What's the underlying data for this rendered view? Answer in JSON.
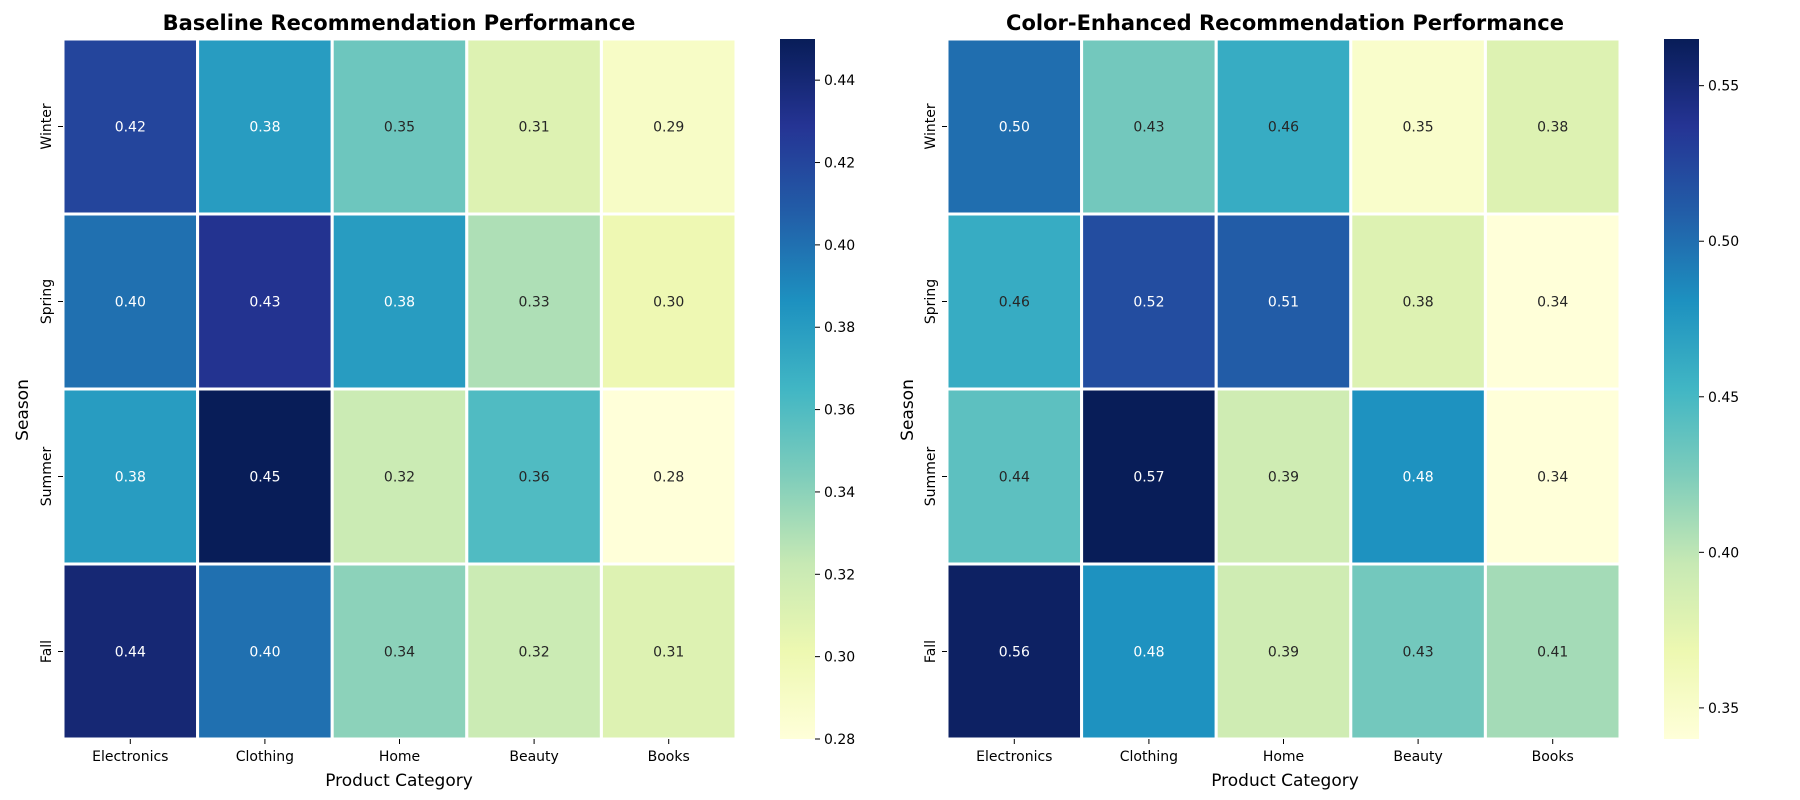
{
  "chart_data": [
    {
      "type": "heatmap",
      "title": "Baseline Recommendation Performance",
      "xlabel": "Product Category",
      "ylabel": "Season",
      "x_categories": [
        "Electronics",
        "Clothing",
        "Home",
        "Beauty",
        "Books"
      ],
      "y_categories": [
        "Winter",
        "Spring",
        "Summer",
        "Fall"
      ],
      "values": [
        [
          0.42,
          0.38,
          0.35,
          0.31,
          0.29
        ],
        [
          0.4,
          0.43,
          0.38,
          0.33,
          0.3
        ],
        [
          0.38,
          0.45,
          0.32,
          0.36,
          0.28
        ],
        [
          0.44,
          0.4,
          0.34,
          0.32,
          0.31
        ]
      ],
      "value_format": "0.00",
      "colormap": "YlGnBu",
      "colorbar": {
        "range": [
          0.28,
          0.45
        ],
        "ticks": [
          0.28,
          0.3,
          0.32,
          0.34,
          0.36,
          0.38,
          0.4,
          0.42,
          0.44
        ],
        "tick_labels": [
          "0.28",
          "0.30",
          "0.32",
          "0.34",
          "0.36",
          "0.38",
          "0.40",
          "0.42",
          "0.44"
        ]
      }
    },
    {
      "type": "heatmap",
      "title": "Color-Enhanced Recommendation Performance",
      "xlabel": "Product Category",
      "ylabel": "Season",
      "x_categories": [
        "Electronics",
        "Clothing",
        "Home",
        "Beauty",
        "Books"
      ],
      "y_categories": [
        "Winter",
        "Spring",
        "Summer",
        "Fall"
      ],
      "values": [
        [
          0.5,
          0.43,
          0.46,
          0.35,
          0.38
        ],
        [
          0.46,
          0.52,
          0.51,
          0.38,
          0.34
        ],
        [
          0.44,
          0.57,
          0.39,
          0.48,
          0.34
        ],
        [
          0.56,
          0.48,
          0.39,
          0.43,
          0.41
        ]
      ],
      "value_format": "0.00",
      "colormap": "YlGnBu",
      "colorbar": {
        "range": [
          0.34,
          0.565
        ],
        "ticks": [
          0.35,
          0.4,
          0.45,
          0.5,
          0.55
        ],
        "tick_labels": [
          "0.35",
          "0.40",
          "0.45",
          "0.50",
          "0.55"
        ]
      }
    }
  ],
  "colors": {
    "cell_border": "#ffffff",
    "colormap_stops": [
      "#ffffd9",
      "#edf8b1",
      "#c7e9b4",
      "#7fcdbb",
      "#41b6c4",
      "#1d91c0",
      "#225ea8",
      "#253494",
      "#081d58"
    ]
  }
}
